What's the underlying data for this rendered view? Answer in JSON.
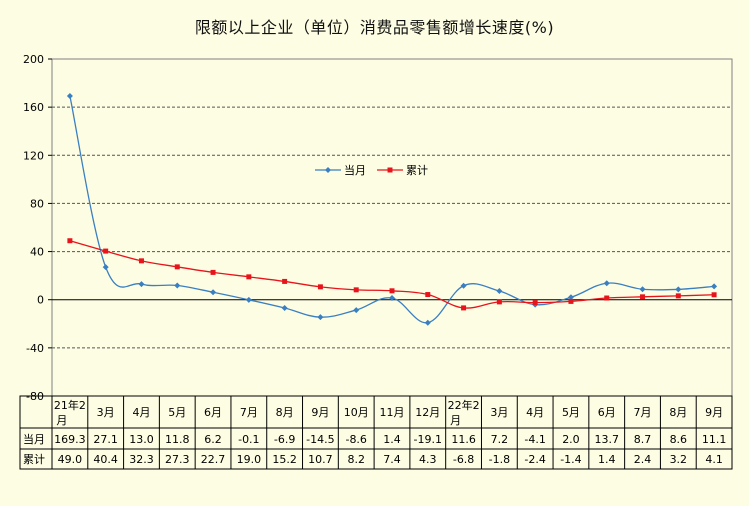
{
  "chart_data": {
    "type": "line",
    "title": "限额以上企业（单位）消费品零售额增长速度(%)",
    "categories": [
      "21年2月",
      "3月",
      "4月",
      "5月",
      "6月",
      "7月",
      "8月",
      "9月",
      "10月",
      "11月",
      "12月",
      "22年2月",
      "3月",
      "4月",
      "5月",
      "6月",
      "7月",
      "8月",
      "9月"
    ],
    "series": [
      {
        "name": "当月",
        "color": "#3a7fc1",
        "marker": "diamond",
        "values": [
          169.3,
          27.1,
          13.0,
          11.8,
          6.2,
          -0.1,
          -6.9,
          -14.5,
          -8.6,
          1.4,
          -19.1,
          11.6,
          7.2,
          -4.1,
          2.0,
          13.7,
          8.7,
          8.6,
          11.1
        ],
        "labels": [
          "169.3",
          "27.1",
          "13.0",
          "11.8",
          "6.2",
          "-0.1",
          "-6.9",
          "-14.5",
          "-8.6",
          "1.4",
          "-19.1",
          "11.6",
          "7.2",
          "-4.1",
          "2.0",
          "13.7",
          "8.7",
          "8.6",
          "11.1"
        ]
      },
      {
        "name": "累计",
        "color": "#e8141c",
        "marker": "square",
        "values": [
          49.0,
          40.4,
          32.3,
          27.3,
          22.7,
          19.0,
          15.2,
          10.7,
          8.2,
          7.4,
          4.3,
          -6.8,
          -1.8,
          -2.4,
          -1.4,
          1.4,
          2.4,
          3.2,
          4.1
        ],
        "labels": [
          "49.0",
          "40.4",
          "32.3",
          "27.3",
          "22.7",
          "19.0",
          "15.2",
          "10.7",
          "8.2",
          "7.4",
          "4.3",
          "-6.8",
          "-1.8",
          "-2.4",
          "-1.4",
          "1.4",
          "2.4",
          "3.2",
          "4.1"
        ]
      }
    ],
    "ylim": [
      -80,
      200
    ],
    "yticks": [
      "200",
      "160",
      "120",
      "80",
      "40",
      "0",
      "-40",
      "-80"
    ],
    "grid": true,
    "legend_position": "center",
    "data_table": true
  }
}
